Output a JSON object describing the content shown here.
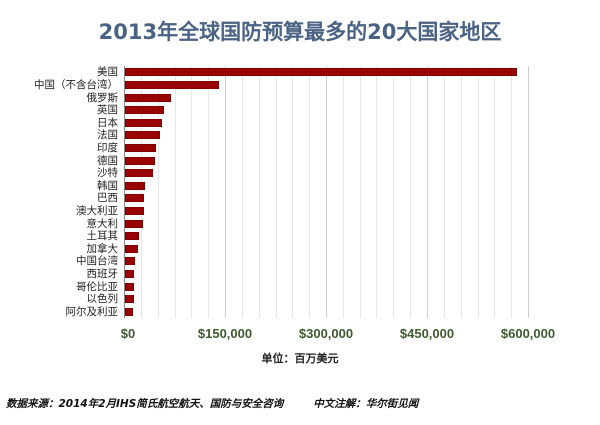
{
  "chart_data": {
    "type": "bar",
    "orientation": "horizontal",
    "title": "2013年全球国防预算最多的20大国家地区",
    "xlabel": "单位：百万美元",
    "ylabel": "",
    "xlim": [
      0,
      600000
    ],
    "x_ticks": [
      "$0",
      "$150,000",
      "$300,000",
      "$450,000",
      "$600,000"
    ],
    "x_tick_values": [
      0,
      150000,
      300000,
      450000,
      600000
    ],
    "grid": true,
    "minor_grid_step": 25000,
    "legend": null,
    "bar_color": "#990000",
    "categories": [
      "美国",
      "中国（不含台湾）",
      "俄罗斯",
      "英国",
      "日本",
      "法国",
      "印度",
      "德国",
      "沙特",
      "韩国",
      "巴西",
      "澳大利亚",
      "意大利",
      "土耳其",
      "加拿大",
      "中国台湾",
      "西班牙",
      "哥伦比亚",
      "以色列",
      "阿尔及利亚"
    ],
    "values": [
      582000,
      139000,
      68000,
      58000,
      55000,
      52000,
      46000,
      45000,
      42000,
      30000,
      28000,
      28000,
      27000,
      21000,
      19000,
      15000,
      13000,
      13000,
      13000,
      12000
    ]
  },
  "footer": {
    "source": "数据来源：2014年2月IHS简氏航空航天、国防与安全咨询",
    "note": "中文注解：华尔街见闻"
  },
  "colors": {
    "title": "#4a6283",
    "tick_labels": "#3e5a2e",
    "bars": "#990000"
  }
}
